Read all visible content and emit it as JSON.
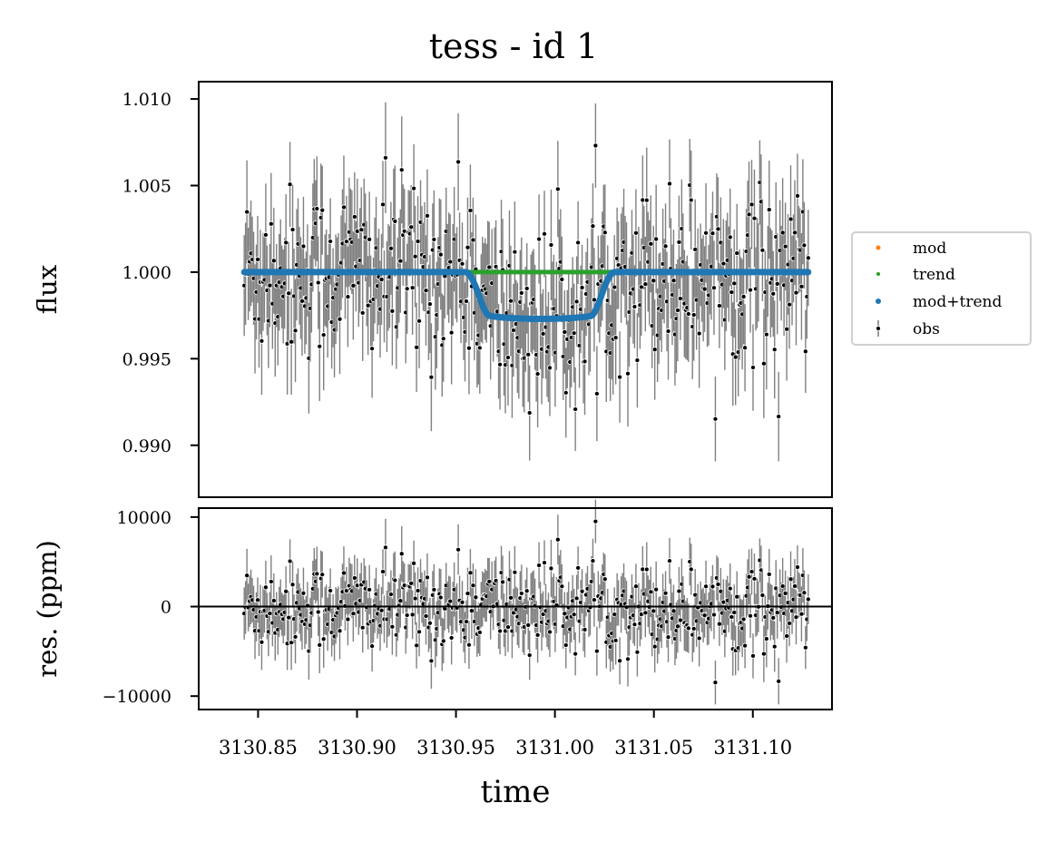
{
  "chart_data": {
    "type": "scatter",
    "title": "tess - id 1",
    "xlabel": "time",
    "x_ticks": [
      3130.85,
      3130.9,
      3130.95,
      3131.0,
      3131.05,
      3131.1
    ],
    "x_tick_labels": [
      "3130.85",
      "3130.90",
      "3130.95",
      "3131.00",
      "3131.05",
      "3131.10"
    ],
    "xlim": [
      3130.82,
      3131.14
    ],
    "panels": [
      {
        "name": "flux",
        "ylabel": "flux",
        "ylim": [
          0.987,
          1.011
        ],
        "y_ticks": [
          0.99,
          0.995,
          1.0,
          1.005,
          1.01
        ],
        "y_tick_labels": [
          "0.990",
          "0.995",
          "1.000",
          "1.005",
          "1.010"
        ]
      },
      {
        "name": "residuals",
        "ylabel": "res. (ppm)",
        "ylim": [
          -11500,
          11000
        ],
        "y_ticks": [
          -10000,
          0,
          10000
        ],
        "y_tick_labels": [
          "−10000",
          "0",
          "10000"
        ],
        "zero_line": true
      }
    ],
    "legend": {
      "placement": "right-outside",
      "entries": [
        {
          "label": "mod",
          "color": "#ff7f0e",
          "marker": "dot"
        },
        {
          "label": "trend",
          "color": "#2ca02c",
          "marker": "dot"
        },
        {
          "label": "mod+trend",
          "color": "#1f77b4",
          "marker": "dot"
        },
        {
          "label": "obs",
          "color": "#000000",
          "marker": "errorbar"
        }
      ]
    },
    "observations": {
      "x_start": 3130.843,
      "x_end": 3131.128,
      "n_points": 420,
      "noise_sigma": 0.0025,
      "error_bar": 0.0028
    },
    "transit_model": {
      "baseline": 1.0,
      "t_ingress_start": 3130.955,
      "t_ingress_end": 3130.967,
      "t_egress_start": 3131.018,
      "t_egress_end": 3131.03,
      "depth_at_contact": 0.0023,
      "max_depth": 0.0027,
      "center": 3130.993
    },
    "series_colors": {
      "mod": "#ff7f0e",
      "trend": "#2ca02c",
      "mod_trend": "#1f77b4",
      "obs_points": "#000000",
      "obs_errorbars": "#808080"
    }
  }
}
